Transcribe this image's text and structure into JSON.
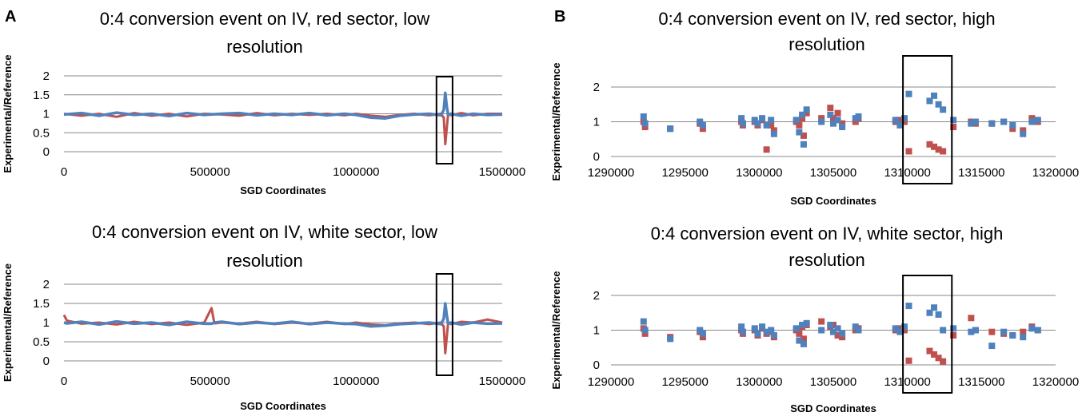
{
  "figure": {
    "panel_letters": [
      "A",
      "B"
    ]
  },
  "colors": {
    "experimental_red": "#c0504d",
    "reference_blue": "#4f81bd",
    "gridline": "#888888",
    "highlight_box": "#000000"
  },
  "chart_data": [
    {
      "type": "line",
      "panel": "A",
      "title_lines": [
        "0:4 conversion event on IV, red sector, low",
        "resolution"
      ],
      "xlabel": "SGD Coordinates",
      "ylabel": "Experimental/Reference",
      "xlim": [
        0,
        1500000
      ],
      "ylim": [
        0,
        2
      ],
      "xticks": [
        0,
        500000,
        1000000,
        1500000
      ],
      "xtick_labels": [
        "0",
        "500000",
        "1000000",
        "1500000"
      ],
      "yticks": [
        0,
        0.5,
        1,
        1.5,
        2
      ],
      "ytick_labels": [
        "0",
        "0.5",
        "1",
        "1.5",
        "2"
      ],
      "grid": "horizontal",
      "highlight_range_x": [
        1275000,
        1330000
      ],
      "series": [
        {
          "color": "#c0504d",
          "x": [
            0,
            60000,
            120000,
            180000,
            240000,
            300000,
            360000,
            420000,
            480000,
            540000,
            600000,
            660000,
            720000,
            780000,
            840000,
            900000,
            960000,
            1000000,
            1050000,
            1100000,
            1150000,
            1200000,
            1250000,
            1290000,
            1300000,
            1305000,
            1310000,
            1315000,
            1325000,
            1360000,
            1400000,
            1450000,
            1500000
          ],
          "y": [
            1.0,
            0.95,
            1.0,
            0.92,
            1.02,
            0.95,
            1.0,
            0.93,
            1.0,
            0.98,
            0.95,
            1.02,
            0.96,
            1.0,
            0.97,
            1.0,
            0.96,
            1.0,
            0.95,
            0.92,
            0.97,
            1.0,
            0.96,
            1.0,
            0.9,
            0.2,
            0.6,
            1.0,
            0.96,
            1.02,
            0.96,
            1.0,
            1.0
          ]
        },
        {
          "color": "#4f81bd",
          "x": [
            0,
            60000,
            120000,
            180000,
            240000,
            300000,
            360000,
            420000,
            480000,
            540000,
            600000,
            660000,
            720000,
            780000,
            840000,
            900000,
            960000,
            1000000,
            1050000,
            1100000,
            1150000,
            1200000,
            1250000,
            1290000,
            1300000,
            1305000,
            1310000,
            1315000,
            1325000,
            1360000,
            1400000,
            1450000,
            1500000
          ],
          "y": [
            0.98,
            1.02,
            0.95,
            1.03,
            0.97,
            1.0,
            0.94,
            1.02,
            0.97,
            1.0,
            1.02,
            0.96,
            1.0,
            0.97,
            1.02,
            0.96,
            1.0,
            0.97,
            0.9,
            0.88,
            0.95,
            0.98,
            1.0,
            0.96,
            1.1,
            1.55,
            1.2,
            0.97,
            1.0,
            0.95,
            1.0,
            0.97,
            0.98
          ]
        }
      ]
    },
    {
      "type": "line",
      "panel": "A",
      "title_lines": [
        "0:4 conversion event on IV, white sector, low",
        "resolution"
      ],
      "xlabel": "SGD Coordinates",
      "ylabel": "Experimental/Reference",
      "xlim": [
        0,
        1500000
      ],
      "ylim": [
        0,
        2
      ],
      "xticks": [
        0,
        500000,
        1000000,
        1500000
      ],
      "xtick_labels": [
        "0",
        "500000",
        "1000000",
        "1500000"
      ],
      "yticks": [
        0,
        0.5,
        1,
        1.5,
        2
      ],
      "ytick_labels": [
        "0",
        "0.5",
        "1",
        "1.5",
        "2"
      ],
      "grid": "horizontal",
      "highlight_range_x": [
        1275000,
        1330000
      ],
      "series": [
        {
          "color": "#c0504d",
          "x": [
            0,
            10000,
            60000,
            120000,
            180000,
            240000,
            300000,
            360000,
            420000,
            480000,
            505000,
            515000,
            540000,
            600000,
            660000,
            720000,
            780000,
            840000,
            900000,
            960000,
            1000000,
            1050000,
            1100000,
            1150000,
            1200000,
            1250000,
            1290000,
            1300000,
            1305000,
            1310000,
            1315000,
            1325000,
            1360000,
            1400000,
            1450000,
            1500000
          ],
          "y": [
            1.2,
            1.05,
            0.97,
            1.0,
            0.95,
            1.02,
            0.96,
            1.0,
            0.94,
            1.0,
            1.38,
            0.98,
            1.0,
            0.97,
            1.02,
            0.96,
            1.0,
            0.97,
            1.02,
            0.96,
            1.0,
            0.95,
            0.93,
            0.98,
            1.0,
            0.96,
            1.0,
            0.9,
            0.2,
            0.6,
            1.0,
            0.96,
            1.02,
            1.0,
            1.08,
            1.0
          ]
        },
        {
          "color": "#4f81bd",
          "x": [
            0,
            10000,
            60000,
            120000,
            180000,
            240000,
            300000,
            360000,
            420000,
            480000,
            505000,
            515000,
            540000,
            600000,
            660000,
            720000,
            780000,
            840000,
            900000,
            960000,
            1000000,
            1050000,
            1100000,
            1150000,
            1200000,
            1250000,
            1290000,
            1300000,
            1305000,
            1310000,
            1315000,
            1325000,
            1360000,
            1400000,
            1450000,
            1500000
          ],
          "y": [
            1.0,
            0.98,
            1.02,
            0.95,
            1.03,
            0.97,
            1.0,
            0.94,
            1.02,
            0.97,
            0.97,
            1.0,
            1.02,
            0.96,
            1.0,
            0.97,
            1.02,
            0.96,
            1.0,
            0.97,
            0.96,
            0.9,
            0.92,
            0.96,
            0.98,
            1.0,
            0.96,
            1.1,
            1.5,
            1.2,
            0.97,
            1.0,
            0.95,
            1.0,
            0.97,
            0.98
          ]
        }
      ]
    },
    {
      "type": "scatter",
      "panel": "B",
      "title_lines": [
        "0:4 conversion event on IV, red sector, high",
        "resolution"
      ],
      "xlabel": "SGD Coordinates",
      "ylabel": "Experimental/Reference",
      "xlim": [
        1290000,
        1320000
      ],
      "ylim": [
        0,
        2
      ],
      "xticks": [
        1290000,
        1295000,
        1300000,
        1305000,
        1310000,
        1315000,
        1320000
      ],
      "xtick_labels": [
        "1290000",
        "1295000",
        "1300000",
        "1305000",
        "1310000",
        "1315000",
        "1320000"
      ],
      "yticks": [
        0,
        1,
        2
      ],
      "ytick_labels": [
        "0",
        "1",
        "2"
      ],
      "grid": "horizontal",
      "highlight_range_x": [
        1309700,
        1313000
      ],
      "series": [
        {
          "color": "#c0504d",
          "x": [
            1292200,
            1292300,
            1294000,
            1296000,
            1296200,
            1298800,
            1298900,
            1299700,
            1299900,
            1300200,
            1300500,
            1300800,
            1301000,
            1302500,
            1302700,
            1302900,
            1303000,
            1303200,
            1304200,
            1304800,
            1305000,
            1305300,
            1305600,
            1306500,
            1306700,
            1309200,
            1309500,
            1309800,
            1310100,
            1311500,
            1311800,
            1312100,
            1312400,
            1313100,
            1314300,
            1314600,
            1315700,
            1316500,
            1317100,
            1317800,
            1318400,
            1318800
          ],
          "y": [
            1.0,
            0.85,
            0.8,
            0.95,
            0.8,
            1.0,
            0.9,
            1.0,
            0.9,
            1.05,
            0.2,
            0.9,
            0.75,
            1.0,
            0.9,
            1.1,
            0.6,
            1.25,
            1.1,
            1.4,
            1.1,
            1.25,
            0.95,
            1.0,
            1.1,
            1.0,
            1.05,
            1.0,
            0.15,
            0.35,
            0.28,
            0.2,
            0.15,
            0.85,
            1.0,
            0.95,
            0.95,
            1.0,
            0.8,
            0.75,
            1.1,
            1.0
          ]
        },
        {
          "color": "#4f81bd",
          "x": [
            1292200,
            1292300,
            1294000,
            1296000,
            1296200,
            1298800,
            1298900,
            1299700,
            1299900,
            1300200,
            1300500,
            1300800,
            1301000,
            1302500,
            1302700,
            1302900,
            1303000,
            1303200,
            1304200,
            1304800,
            1305000,
            1305300,
            1305600,
            1306500,
            1306700,
            1309200,
            1309500,
            1309800,
            1310100,
            1311500,
            1311800,
            1312100,
            1312400,
            1313100,
            1314300,
            1314600,
            1315700,
            1316500,
            1317100,
            1317800,
            1318400,
            1318800
          ],
          "y": [
            1.15,
            0.95,
            0.8,
            1.0,
            0.9,
            1.1,
            0.95,
            1.05,
            0.95,
            1.1,
            0.9,
            1.05,
            0.65,
            1.05,
            0.7,
            1.2,
            0.35,
            1.35,
            1.0,
            1.2,
            0.95,
            1.05,
            0.85,
            1.1,
            1.15,
            1.05,
            0.9,
            1.1,
            1.8,
            1.6,
            1.75,
            1.5,
            1.35,
            1.05,
            0.95,
            1.0,
            0.95,
            1.0,
            0.9,
            0.65,
            1.0,
            1.05
          ]
        }
      ]
    },
    {
      "type": "scatter",
      "panel": "B",
      "title_lines": [
        "0:4 conversion event on IV, white sector, high",
        "resolution"
      ],
      "xlabel": "SGD Coordinates",
      "ylabel": "Experimental/Reference",
      "xlim": [
        1290000,
        1320000
      ],
      "ylim": [
        0,
        2
      ],
      "xticks": [
        1290000,
        1295000,
        1300000,
        1305000,
        1310000,
        1315000,
        1320000
      ],
      "xtick_labels": [
        "1290000",
        "1295000",
        "1300000",
        "1305000",
        "1310000",
        "1315000",
        "1320000"
      ],
      "yticks": [
        0,
        1,
        2
      ],
      "ytick_labels": [
        "0",
        "1",
        "2"
      ],
      "grid": "horizontal",
      "highlight_range_x": [
        1309700,
        1313000
      ],
      "series": [
        {
          "color": "#c0504d",
          "x": [
            1292200,
            1292300,
            1294000,
            1296000,
            1296200,
            1298800,
            1298900,
            1299700,
            1299900,
            1300200,
            1300500,
            1300800,
            1301000,
            1302500,
            1302700,
            1302900,
            1303000,
            1303200,
            1304200,
            1304800,
            1305000,
            1305300,
            1305600,
            1306500,
            1306700,
            1309200,
            1309500,
            1309800,
            1310100,
            1311500,
            1311800,
            1312100,
            1312400,
            1313100,
            1314300,
            1314600,
            1315700,
            1316500,
            1317100,
            1317800,
            1318400,
            1318800
          ],
          "y": [
            1.05,
            0.9,
            0.8,
            0.95,
            0.8,
            1.0,
            0.9,
            1.0,
            0.85,
            1.05,
            0.9,
            0.95,
            0.8,
            1.0,
            0.9,
            1.1,
            0.75,
            1.15,
            1.25,
            1.1,
            1.15,
            0.85,
            0.8,
            1.0,
            1.05,
            1.0,
            1.05,
            1.0,
            0.12,
            0.4,
            0.3,
            0.2,
            0.1,
            0.85,
            1.35,
            1.0,
            0.95,
            0.9,
            0.85,
            0.95,
            1.1,
            1.0
          ]
        },
        {
          "color": "#4f81bd",
          "x": [
            1292200,
            1292300,
            1294000,
            1296000,
            1296200,
            1298800,
            1298900,
            1299700,
            1299900,
            1300200,
            1300500,
            1300800,
            1301000,
            1302500,
            1302700,
            1302900,
            1303000,
            1303200,
            1304200,
            1304800,
            1305000,
            1305300,
            1305600,
            1306500,
            1306700,
            1309200,
            1309500,
            1309800,
            1310100,
            1311500,
            1311800,
            1312100,
            1312400,
            1313100,
            1314300,
            1314600,
            1315700,
            1316500,
            1317100,
            1317800,
            1318400,
            1318800
          ],
          "y": [
            1.25,
            1.0,
            0.75,
            1.0,
            0.9,
            1.1,
            0.95,
            1.05,
            0.9,
            1.1,
            0.95,
            1.0,
            0.85,
            1.05,
            0.7,
            1.15,
            0.6,
            1.2,
            1.0,
            1.15,
            0.95,
            1.05,
            0.9,
            1.1,
            1.0,
            1.05,
            0.95,
            1.1,
            1.7,
            1.5,
            1.65,
            1.45,
            1.0,
            1.05,
            0.95,
            1.0,
            0.55,
            0.95,
            0.85,
            0.8,
            1.05,
            1.0
          ]
        }
      ]
    }
  ]
}
